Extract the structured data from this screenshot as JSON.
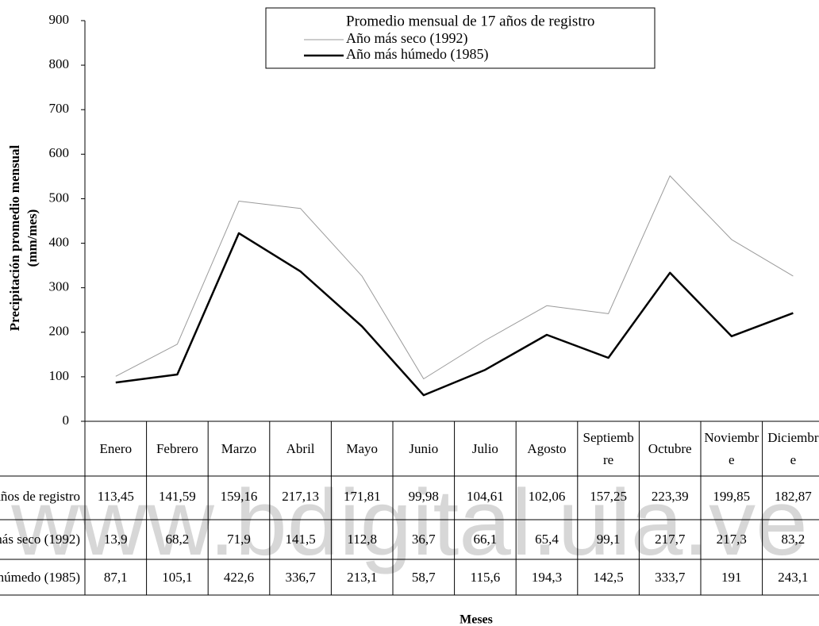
{
  "chart_data": {
    "type": "line",
    "stacked": true,
    "ylabel": [
      "Precipitación promedio mensual",
      "(mm/mes)"
    ],
    "xlabel": "Meses",
    "watermark": "www.bdigital.ula.ve",
    "categories": [
      "Enero",
      "Febrero",
      "Marzo",
      "Abril",
      "Mayo",
      "Junio",
      "Julio",
      "Agosto",
      "Septiembre",
      "Octubre",
      "Noviembre",
      "Diciembre"
    ],
    "ylim": [
      0,
      900
    ],
    "yticks": [
      0,
      100,
      200,
      300,
      400,
      500,
      600,
      700,
      800,
      900
    ],
    "series": [
      {
        "name": "Promedio mensual de 17 años de registro",
        "color": "#ffffff",
        "width": 1,
        "values": [
          113.45,
          141.59,
          159.16,
          217.13,
          171.81,
          99.98,
          104.61,
          102.06,
          157.25,
          223.39,
          199.85,
          182.87
        ],
        "value_labels": [
          "113,45",
          "141,59",
          "159,16",
          "217,13",
          "171,81",
          "99,98",
          "104,61",
          "102,06",
          "157,25",
          "223,39",
          "199,85",
          "182,87"
        ]
      },
      {
        "name": "Año más seco (1992)",
        "color": "#9a9a9a",
        "width": 1,
        "values": [
          13.9,
          68.2,
          71.9,
          141.5,
          112.8,
          36.7,
          66.1,
          65.4,
          99.1,
          217.7,
          217.3,
          83.2
        ],
        "value_labels": [
          "13,9",
          "68,2",
          "71,9",
          "141,5",
          "112,8",
          "36,7",
          "66,1",
          "65,4",
          "99,1",
          "217,7",
          "217,3",
          "83,2"
        ]
      },
      {
        "name": "Año más húmedo (1985)",
        "color": "#000000",
        "width": 2.5,
        "values": [
          87.1,
          105.1,
          422.6,
          336.7,
          213.1,
          58.7,
          115.6,
          194.3,
          142.5,
          333.7,
          191,
          243.1
        ],
        "value_labels": [
          "87,1",
          "105,1",
          "422,6",
          "336,7",
          "213,1",
          "58,7",
          "115,6",
          "194,3",
          "142,5",
          "333,7",
          "191",
          "243,1"
        ]
      }
    ]
  }
}
